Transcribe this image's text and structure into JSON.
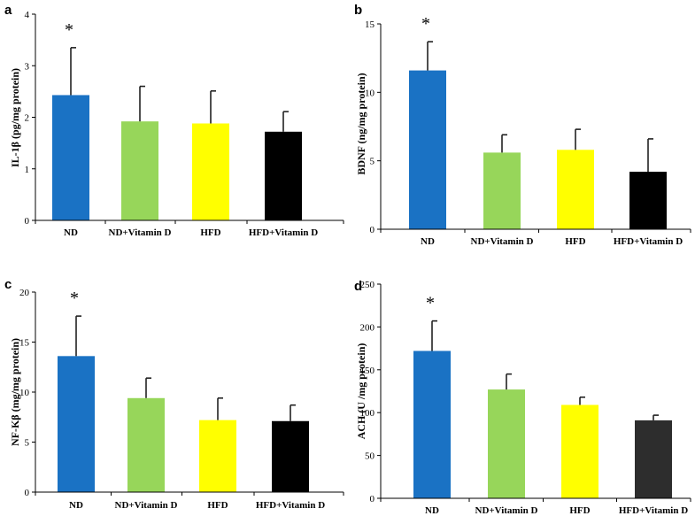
{
  "chart_data": [
    {
      "panel": "a",
      "type": "bar",
      "categories": [
        "ND",
        "ND+Vitamin D",
        "HFD",
        "HFD+Vitamin D"
      ],
      "values": [
        2.43,
        1.92,
        1.88,
        1.72
      ],
      "errors": [
        0.92,
        0.68,
        0.63,
        0.39
      ],
      "colors": [
        "#1a72c4",
        "#97d65a",
        "#ffff00",
        "#000000"
      ],
      "ylabel": "IL-1β (pg/mg protein)",
      "ylim": [
        0,
        4
      ],
      "yticks": [
        0,
        1,
        2,
        3,
        4
      ],
      "tick_labels": [
        "0",
        "1",
        "2",
        "3",
        "4"
      ],
      "annotation": "*",
      "annotation_index": 0
    },
    {
      "panel": "b",
      "type": "bar",
      "categories": [
        "ND",
        "ND+Vitamin D",
        "HFD",
        "HFD+Vitamin D"
      ],
      "values": [
        11.6,
        5.6,
        5.8,
        4.2
      ],
      "errors": [
        2.1,
        1.3,
        1.5,
        2.4
      ],
      "colors": [
        "#1a72c4",
        "#97d65a",
        "#ffff00",
        "#000000"
      ],
      "ylabel": "BDNF  (ng/mg protein)",
      "ylim": [
        0,
        15
      ],
      "yticks": [
        0,
        5,
        10,
        15
      ],
      "tick_labels": [
        "0",
        "5",
        "10",
        "15"
      ],
      "annotation": "*",
      "annotation_index": 0
    },
    {
      "panel": "c",
      "type": "bar",
      "categories": [
        "ND",
        "ND+Vitamin D",
        "HFD",
        "HFD+Vitamin D"
      ],
      "values": [
        13.6,
        9.4,
        7.2,
        7.1
      ],
      "errors": [
        4.0,
        2.0,
        2.2,
        1.6
      ],
      "colors": [
        "#1a72c4",
        "#97d65a",
        "#ffff00",
        "#000000"
      ],
      "ylabel": "NF-Kβ  (mg/mg protein)",
      "ylim": [
        0,
        20
      ],
      "yticks": [
        0,
        5,
        10,
        15,
        20
      ],
      "tick_labels": [
        "0",
        "5",
        "10",
        "15",
        "20"
      ],
      "annotation": "*",
      "annotation_index": 0
    },
    {
      "panel": "d",
      "type": "bar",
      "categories": [
        "ND",
        "ND+Vitamin D",
        "HFD",
        "HFD+Vitamin D"
      ],
      "values": [
        172,
        127,
        109,
        91
      ],
      "errors": [
        35,
        18,
        9,
        6
      ],
      "colors": [
        "#1a72c4",
        "#97d65a",
        "#ffff00",
        "#2d2d2d"
      ],
      "ylabel": "ACH (U /mg protein)",
      "ylim": [
        0,
        250
      ],
      "yticks": [
        0,
        50,
        100,
        150,
        200,
        250
      ],
      "tick_labels": [
        "0",
        "50",
        "100",
        "150",
        "200",
        "250"
      ],
      "annotation": "*",
      "annotation_index": 0
    }
  ]
}
